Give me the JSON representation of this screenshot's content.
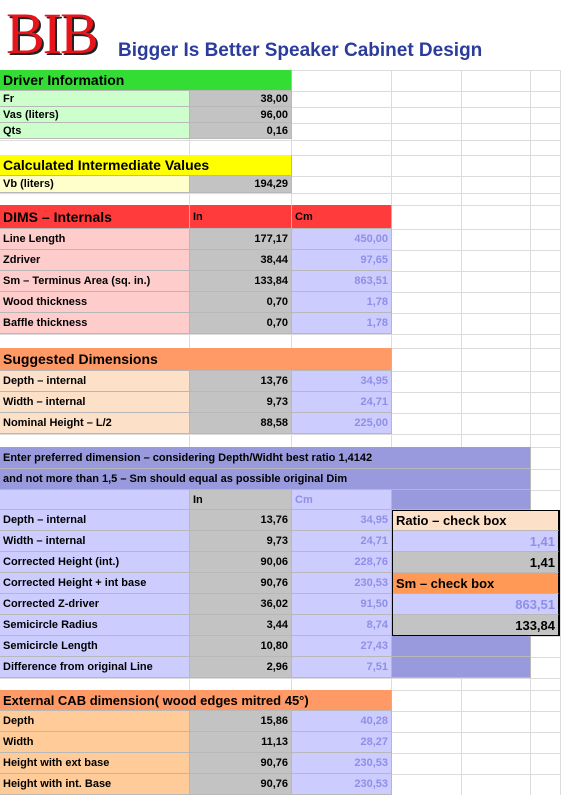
{
  "header": {
    "logo": "BIB",
    "title": "Bigger Is Better Speaker Cabinet Design"
  },
  "driver": {
    "title": "Driver Information",
    "rows": [
      [
        "Fr",
        "38,00"
      ],
      [
        "Vas (liters)",
        "96,00"
      ],
      [
        "Qts",
        "0,16"
      ]
    ]
  },
  "intermediate": {
    "title": "Calculated  Intermediate  Values",
    "rows": [
      [
        "Vb (liters)",
        "194,29"
      ]
    ]
  },
  "internals": {
    "title": "DIMS – Internals",
    "col_in": "In",
    "col_cm": "Cm",
    "rows": [
      [
        "Line Length",
        "177,17",
        "450,00"
      ],
      [
        "Zdriver",
        "38,44",
        "97,65"
      ],
      [
        "Sm – Terminus Area (sq. in.)",
        "133,84",
        "863,51"
      ],
      [
        "Wood thickness",
        "0,70",
        "1,78"
      ],
      [
        "Baffle thickness",
        "0,70",
        "1,78"
      ]
    ]
  },
  "suggested": {
    "title": "Suggested  Dimensions",
    "rows": [
      [
        "Depth – internal",
        "13,76",
        "34,95"
      ],
      [
        "Width – internal",
        "9,73",
        "24,71"
      ],
      [
        "Nominal Height – L/2",
        "88,58",
        "225,00"
      ]
    ]
  },
  "preferred": {
    "note": [
      "Enter preferred dimension – considering Depth/Widht best ratio 1,4142",
      "and not more than 1,5 – Sm should equal as possible original Dim"
    ],
    "col_in": "In",
    "col_cm": "Cm",
    "rows": [
      [
        "Depth – internal",
        "13,76",
        "34,95"
      ],
      [
        "Width – internal",
        "9,73",
        "24,71"
      ],
      [
        "Corrected Height (int.)",
        "90,06",
        "228,76"
      ],
      [
        "Corrected Height + int base",
        "90,76",
        "230,53"
      ],
      [
        "Corrected Z-driver",
        "36,02",
        "91,50"
      ],
      [
        "Semicircle Radius",
        "3,44",
        "8,74"
      ],
      [
        "Semicircle Length",
        "10,80",
        "27,43"
      ],
      [
        "Difference from original Line",
        "2,96",
        "7,51"
      ]
    ],
    "checks": {
      "ratio_title": "Ratio – check box",
      "ratio_values": [
        "1,41",
        "1,41"
      ],
      "sm_title": "Sm – check box",
      "sm_values": [
        "863,51",
        "133,84"
      ]
    }
  },
  "external": {
    "title": "External CAB dimension( wood edges mitred 45°)",
    "rows": [
      [
        "Depth",
        "15,86",
        "40,28"
      ],
      [
        "Width",
        "11,13",
        "28,27"
      ],
      [
        "Height with ext base",
        "90,76",
        "230,53"
      ],
      [
        "Height with int. Base",
        "90,76",
        "230,53"
      ]
    ]
  }
}
